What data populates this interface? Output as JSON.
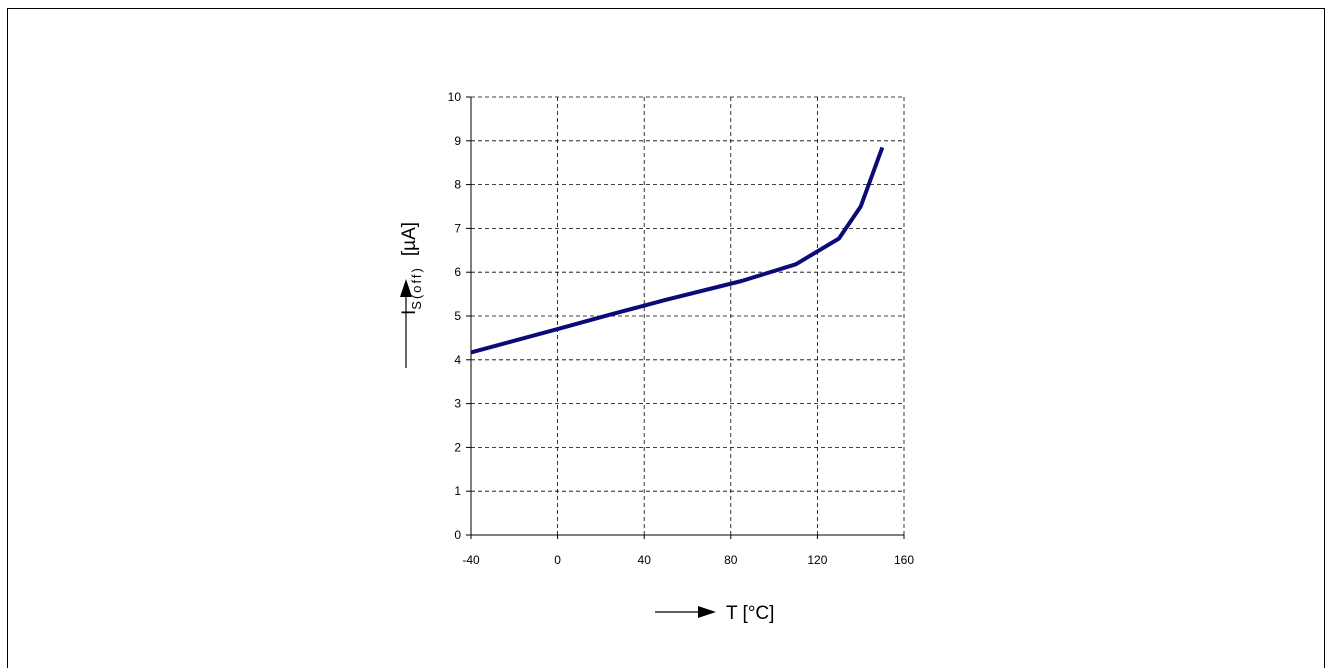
{
  "chart_data": {
    "type": "line",
    "xlabel": "T [°C]",
    "ylabel": {
      "main": "I",
      "sub": "S(off)",
      "unit": "[µA]"
    },
    "xlim": [
      -40,
      160
    ],
    "ylim": [
      0,
      10
    ],
    "x_ticks": [
      -40,
      0,
      40,
      80,
      120,
      160
    ],
    "y_ticks": [
      0,
      1,
      2,
      3,
      4,
      5,
      6,
      7,
      8,
      9,
      10
    ],
    "grid": true,
    "grid_style": "dashed",
    "line_color": "#0a0a78",
    "series": [
      {
        "x": [
          -40,
          0,
          25,
          50,
          85,
          110,
          130,
          140,
          150
        ],
        "y": [
          4.17,
          4.7,
          5.04,
          5.37,
          5.8,
          6.18,
          6.77,
          7.5,
          8.85
        ]
      }
    ]
  }
}
